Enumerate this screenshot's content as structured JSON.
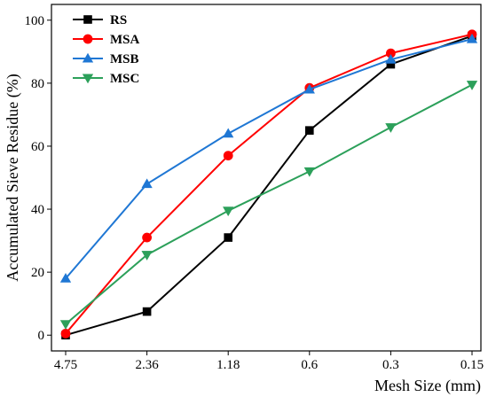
{
  "chart_data": {
    "type": "line",
    "categories": [
      "4.75",
      "2.36",
      "1.18",
      "0.6",
      "0.3",
      "0.15"
    ],
    "xlabel": "Mesh Size (mm)",
    "ylabel": "Accumulated Sieve Residue (%)",
    "ylim": [
      -5,
      105
    ],
    "yticks": [
      0,
      20,
      40,
      60,
      80,
      100
    ],
    "grid": false,
    "legend_position": "top-left",
    "series": [
      {
        "name": "RS",
        "color": "#000000",
        "marker": "square",
        "values": [
          0.0,
          7.5,
          31.0,
          65.0,
          86.0,
          95.0
        ]
      },
      {
        "name": "MSA",
        "color": "#ff0000",
        "marker": "circle",
        "values": [
          0.5,
          31.0,
          57.0,
          78.5,
          89.5,
          95.5
        ]
      },
      {
        "name": "MSB",
        "color": "#1f77d4",
        "marker": "triangle-up",
        "values": [
          18.0,
          48.0,
          64.0,
          78.0,
          87.5,
          94.0
        ]
      },
      {
        "name": "MSC",
        "color": "#2ca05a",
        "marker": "triangle-down",
        "values": [
          3.5,
          25.5,
          39.5,
          52.0,
          66.0,
          79.5
        ]
      }
    ]
  }
}
